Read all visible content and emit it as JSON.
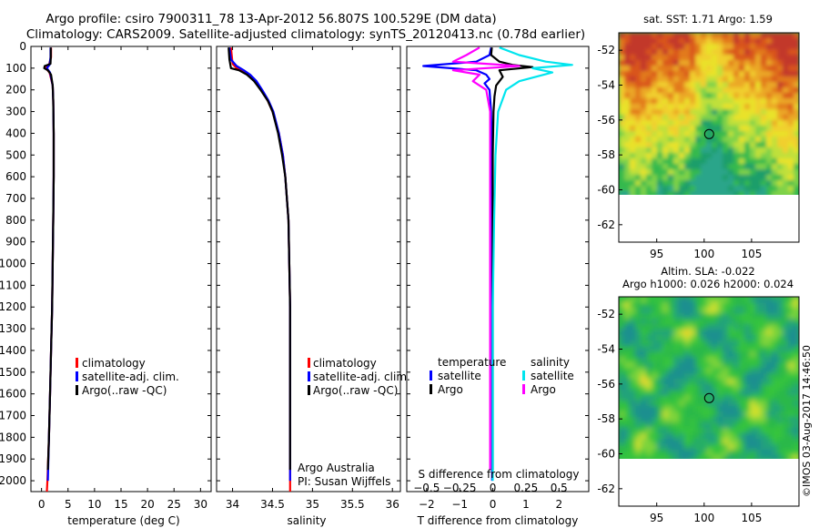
{
  "header": {
    "line1": "Argo profile: csiro 7900311_78 13-Apr-2012 56.807S 100.529E (DM data)",
    "line2": "Climatology: CARS2009. Satellite-adjusted climatology: synTS_20120413.nc (0.78d earlier)"
  },
  "credits": {
    "org": "Argo Australia",
    "pi": "PI: Susan Wijffels",
    "imos": "©IMOS 03-Aug-2017 14:46:50"
  },
  "colors": {
    "climatology": "#ff0000",
    "satellite": "#0000ff",
    "argo": "#000000",
    "satellite_salinity": "#00e5ee",
    "argo_salinity": "#ff00ff"
  },
  "chart_data": [
    {
      "type": "line",
      "name": "temperature",
      "xlabel": "temperature (deg C)",
      "xlim": [
        -2,
        32
      ],
      "ylim": [
        2050,
        0
      ],
      "xticks": [
        "0",
        "5",
        "10",
        "15",
        "20",
        "25",
        "30"
      ],
      "xtick_values": [
        0,
        5,
        10,
        15,
        20,
        25,
        30
      ],
      "yticks": [
        "0",
        "100",
        "200",
        "300",
        "400",
        "500",
        "600",
        "700",
        "800",
        "900",
        "1000",
        "1100",
        "1200",
        "1300",
        "1400",
        "1500",
        "1600",
        "1700",
        "1800",
        "1900",
        "2000"
      ],
      "ytick_values": [
        0,
        100,
        200,
        300,
        400,
        500,
        600,
        700,
        800,
        900,
        1000,
        1100,
        1200,
        1300,
        1400,
        1500,
        1600,
        1700,
        1800,
        1900,
        2000
      ],
      "legend": [
        "climatology",
        "satellite-adj. clim.",
        "Argo(..raw -QC)"
      ],
      "series": [
        {
          "name": "climatology",
          "color": "#ff0000",
          "depth": [
            5,
            50,
            85,
            100,
            120,
            180,
            250,
            400,
            600,
            800,
            1000,
            1200,
            1400,
            1600,
            1800,
            2000,
            2050
          ],
          "values": [
            1.8,
            1.8,
            1.4,
            0.8,
            1.5,
            2.1,
            2.2,
            2.3,
            2.3,
            2.2,
            2.1,
            2.0,
            1.8,
            1.6,
            1.4,
            1.1,
            1.0
          ]
        },
        {
          "name": "satellite-adj. clim.",
          "color": "#0000ff",
          "depth": [
            5,
            50,
            85,
            100,
            120,
            180,
            250,
            400,
            600,
            800,
            1000,
            1200,
            1400,
            1600,
            1800,
            2000
          ],
          "values": [
            1.7,
            1.7,
            1.5,
            1.0,
            1.6,
            2.1,
            2.2,
            2.3,
            2.3,
            2.2,
            2.1,
            2.0,
            1.8,
            1.6,
            1.4,
            1.2
          ]
        },
        {
          "name": "Argo(..raw -QC)",
          "color": "#000000",
          "depth": [
            5,
            50,
            80,
            90,
            100,
            110,
            130,
            180,
            250,
            400,
            600,
            800,
            1000,
            1200,
            1400,
            1600,
            1800,
            1950
          ],
          "values": [
            1.75,
            1.75,
            1.7,
            0.6,
            0.5,
            1.2,
            1.8,
            2.1,
            2.2,
            2.3,
            2.3,
            2.2,
            2.1,
            2.0,
            1.8,
            1.6,
            1.4,
            1.2
          ]
        }
      ]
    },
    {
      "type": "line",
      "name": "salinity",
      "xlabel": "salinity",
      "xlim": [
        33.8,
        36.1
      ],
      "ylim": [
        2050,
        0
      ],
      "xticks": [
        "34",
        "34.5",
        "35",
        "35.5",
        "36"
      ],
      "xtick_values": [
        34,
        34.5,
        35,
        35.5,
        36
      ],
      "legend": [
        "climatology",
        "satellite-adj. clim.",
        "Argo(..raw -QC)"
      ],
      "series": [
        {
          "name": "climatology",
          "color": "#ff0000",
          "depth": [
            5,
            80,
            100,
            120,
            150,
            200,
            250,
            300,
            400,
            500,
            600,
            800,
            1000,
            1200,
            1500,
            2050
          ],
          "values": [
            33.98,
            34.0,
            34.05,
            34.15,
            34.25,
            34.36,
            34.44,
            34.5,
            34.58,
            34.63,
            34.66,
            34.7,
            34.71,
            34.72,
            34.72,
            34.72
          ]
        },
        {
          "name": "satellite-adj. clim.",
          "color": "#0000ff",
          "depth": [
            5,
            60,
            90,
            110,
            130,
            160,
            200,
            250,
            300,
            400,
            500,
            600,
            800,
            1000,
            1200,
            1500,
            2000
          ],
          "values": [
            33.96,
            33.98,
            34.05,
            34.14,
            34.22,
            34.3,
            34.37,
            34.45,
            34.51,
            34.58,
            34.63,
            34.66,
            34.7,
            34.71,
            34.72,
            34.72,
            34.72
          ]
        },
        {
          "name": "Argo(..raw -QC)",
          "color": "#000000",
          "depth": [
            5,
            60,
            100,
            110,
            130,
            160,
            200,
            250,
            300,
            400,
            500,
            600,
            800,
            1000,
            1200,
            1500,
            1950
          ],
          "values": [
            33.95,
            33.96,
            33.98,
            34.08,
            34.18,
            34.27,
            34.35,
            34.44,
            34.5,
            34.57,
            34.62,
            34.66,
            34.7,
            34.71,
            34.72,
            34.72,
            34.72
          ]
        }
      ]
    },
    {
      "type": "line",
      "name": "difference",
      "xlabel_bottom": "T difference from climatology",
      "xlabel_top": "S difference from climatology",
      "xlim": [
        -2.6,
        2.9
      ],
      "ylim": [
        2050,
        0
      ],
      "xticks": [
        "−2",
        "−1",
        "0",
        "1",
        "2"
      ],
      "xtick_values": [
        -2,
        -1,
        0,
        1,
        2
      ],
      "s_xticks": [
        "−0.5",
        "−0.25",
        "0",
        "0.25",
        "0.5"
      ],
      "s_xtick_values": [
        -0.5,
        -0.25,
        0,
        0.25,
        0.5
      ],
      "legend_temperature_title": "temperature",
      "legend_salinity_title": "salinity",
      "legend": [
        "satellite",
        "Argo",
        "satellite",
        "Argo"
      ],
      "series": [
        {
          "name": "temperature satellite",
          "color": "#0000ff",
          "depth": [
            5,
            40,
            70,
            90,
            110,
            130,
            150,
            170,
            200,
            300,
            500,
            800,
            1200,
            1600,
            2000
          ],
          "values": [
            -0.05,
            -0.1,
            -0.5,
            -2.1,
            -0.5,
            -0.2,
            -0.1,
            -0.25,
            -0.1,
            -0.05,
            -0.03,
            -0.02,
            -0.02,
            -0.02,
            -0.02
          ]
        },
        {
          "name": "temperature Argo",
          "color": "#000000",
          "depth": [
            5,
            40,
            70,
            85,
            95,
            110,
            140,
            180,
            230,
            300,
            500,
            800,
            1200,
            1600,
            1950
          ],
          "values": [
            -0.03,
            -0.05,
            0.2,
            0.6,
            1.2,
            0.2,
            0.3,
            0.1,
            0.05,
            0.02,
            0.0,
            0.0,
            0.0,
            0.0,
            0.0
          ]
        },
        {
          "name": "salinity satellite",
          "color": "#00e5ee",
          "depth": [
            5,
            40,
            70,
            85,
            100,
            120,
            160,
            200,
            300,
            500,
            800,
            1200,
            1600,
            2000
          ],
          "values": [
            0.05,
            0.2,
            0.4,
            0.6,
            0.3,
            0.45,
            0.2,
            0.1,
            0.04,
            0.02,
            0.01,
            0.0,
            0.0,
            0.0
          ]
        },
        {
          "name": "salinity Argo",
          "color": "#ff00ff",
          "depth": [
            5,
            40,
            70,
            90,
            110,
            130,
            160,
            200,
            300,
            500,
            800,
            1200,
            1600,
            1950
          ],
          "values": [
            -0.1,
            -0.2,
            -0.3,
            0.2,
            -0.3,
            -0.1,
            -0.15,
            -0.05,
            -0.02,
            -0.02,
            -0.02,
            -0.02,
            -0.02,
            -0.02
          ]
        }
      ]
    },
    {
      "type": "heatmap",
      "name": "sst map",
      "title": "sat. SST: 1.71  Argo: 1.59",
      "xlim": [
        91,
        110
      ],
      "ylim": [
        -63,
        -51
      ],
      "xticks": [
        "95",
        "100",
        "105"
      ],
      "xtick_values": [
        95,
        100,
        105
      ],
      "yticks": [
        "-52",
        "-54",
        "-56",
        "-58",
        "-60",
        "-62"
      ],
      "ytick_values": [
        -52,
        -54,
        -56,
        -58,
        -60,
        -62
      ],
      "marker": [
        100.529,
        -56.807
      ]
    },
    {
      "type": "heatmap",
      "name": "sla map",
      "title_line1": "Altim. SLA: -0.022",
      "title_line2": "Argo h1000: 0.026 h2000: 0.024",
      "xlim": [
        91,
        110
      ],
      "ylim": [
        -63,
        -51
      ],
      "xticks": [
        "95",
        "100",
        "105"
      ],
      "xtick_values": [
        95,
        100,
        105
      ],
      "yticks": [
        "-52",
        "-54",
        "-56",
        "-58",
        "-60",
        "-62"
      ],
      "ytick_values": [
        -52,
        -54,
        -56,
        -58,
        -60,
        -62
      ],
      "marker": [
        100.529,
        -56.807
      ]
    }
  ]
}
